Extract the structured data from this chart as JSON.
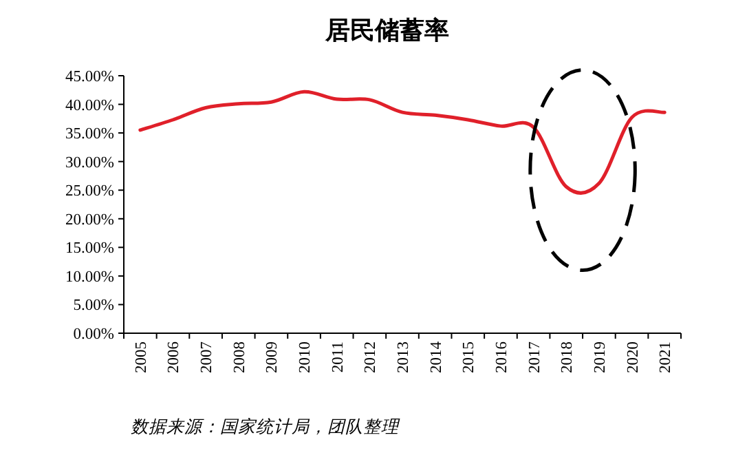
{
  "chart_data": {
    "type": "line",
    "title": "居民储蓄率",
    "categories": [
      "2005",
      "2006",
      "2007",
      "2008",
      "2009",
      "2010",
      "2011",
      "2012",
      "2013",
      "2014",
      "2015",
      "2016",
      "2017",
      "2018",
      "2019",
      "2020",
      "2021"
    ],
    "series": [
      {
        "color": "#e0202a",
        "values": [
          35.5,
          37.3,
          39.4,
          40.1,
          40.4,
          42.2,
          40.9,
          40.8,
          38.6,
          38.1,
          37.3,
          36.2,
          36.0,
          25.6,
          26.2,
          37.7,
          38.6
        ]
      }
    ],
    "ylim": [
      0,
      45
    ],
    "yticks": [
      {
        "value": 0,
        "label": "0.00%"
      },
      {
        "value": 5,
        "label": "5.00%"
      },
      {
        "value": 10,
        "label": "10.00%"
      },
      {
        "value": 15,
        "label": "15.00%"
      },
      {
        "value": 20,
        "label": "20.00%"
      },
      {
        "value": 25,
        "label": "25.00%"
      },
      {
        "value": 30,
        "label": "30.00%"
      },
      {
        "value": 35,
        "label": "35.00%"
      },
      {
        "value": 40,
        "label": "40.00%"
      },
      {
        "value": 45,
        "label": "45.00%"
      }
    ],
    "grid": false,
    "marker": "none",
    "line_style": "solid",
    "annotations": [
      "数据来源：国家统计局，团队整理"
    ]
  }
}
